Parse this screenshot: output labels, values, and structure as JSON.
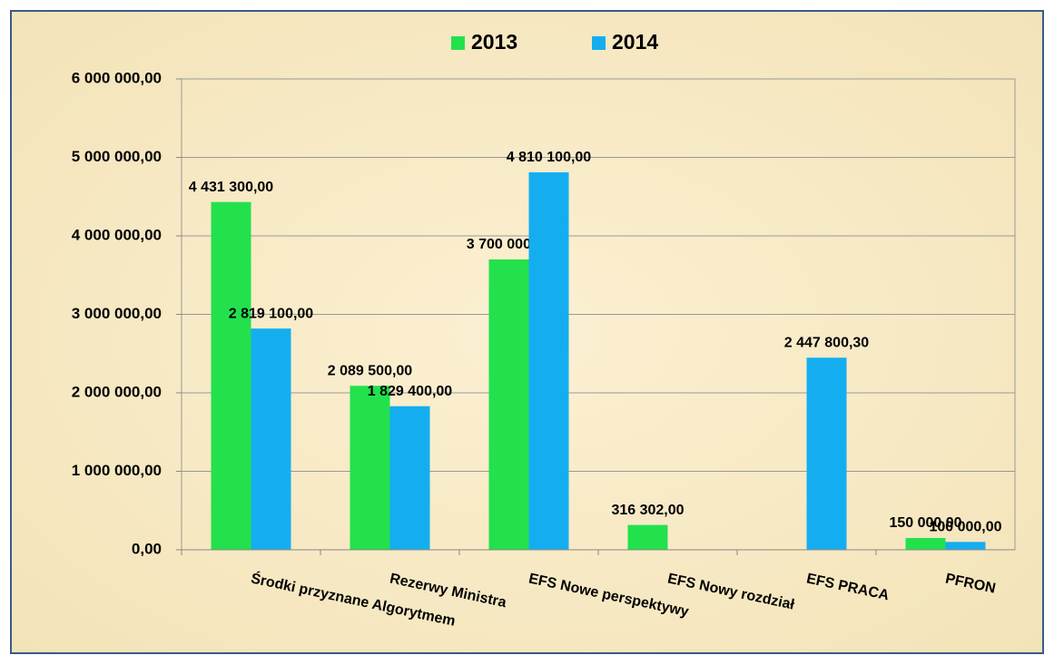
{
  "chart_data": {
    "type": "bar",
    "categories": [
      "Środki przyznane Algorytmem",
      "Rezerwy Ministra",
      "EFS Nowe perspektywy",
      "EFS Nowy rozdział",
      "EFS PRACA",
      "PFRON"
    ],
    "series": [
      {
        "name": "2013",
        "color": "#22e14c",
        "values": [
          4431300,
          2089500,
          3700000,
          316302,
          null,
          150000
        ],
        "value_labels": [
          "4 431 300,00",
          "2 089 500,00",
          "3 700 000,00",
          "316 302,00",
          null,
          "150 000,00"
        ]
      },
      {
        "name": "2014",
        "color": "#14aef0",
        "values": [
          2819100,
          1829400,
          4810100,
          null,
          2447800.3,
          100000
        ],
        "value_labels": [
          "2 819 100,00",
          "1 829 400,00",
          "4 810 100,00",
          null,
          "2 447 800,30",
          "100 000,00"
        ]
      }
    ],
    "ylim": [
      0,
      6000000
    ],
    "yticks": [
      {
        "value": 0,
        "label": "0,00"
      },
      {
        "value": 1000000,
        "label": "1 000 000,00"
      },
      {
        "value": 2000000,
        "label": "2 000 000,00"
      },
      {
        "value": 3000000,
        "label": "3 000 000,00"
      },
      {
        "value": 4000000,
        "label": "4 000 000,00"
      },
      {
        "value": 5000000,
        "label": "5 000 000,00"
      },
      {
        "value": 6000000,
        "label": "6 000 000,00"
      }
    ],
    "grid": true,
    "legend": "top"
  }
}
